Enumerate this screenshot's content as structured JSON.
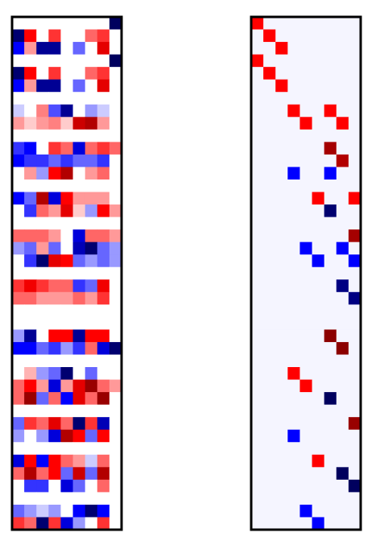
{
  "chart_data": [
    {
      "type": "heatmap",
      "colormap": "seismic",
      "vmin": -1,
      "vmax": 1,
      "colors": {
        "negative_end": "#00004c",
        "zero": "#ffffff",
        "positive_end": "#7f0000"
      },
      "n_rows": 41,
      "n_cols": 9,
      "values": [
        [
          0,
          0,
          0,
          0,
          0,
          0,
          0,
          0,
          -0.95
        ],
        [
          -0.9,
          0.5,
          0,
          0.4,
          0,
          0,
          0.3,
          0.4,
          0
        ],
        [
          -0.5,
          0.2,
          -0.8,
          -0.8,
          0,
          -0.3,
          0,
          0.6,
          0
        ],
        [
          0,
          0,
          0,
          0,
          0,
          0,
          0,
          0,
          -0.95
        ],
        [
          -0.9,
          0.5,
          0,
          0.4,
          0,
          0,
          0.3,
          0.4,
          0
        ],
        [
          -0.5,
          0.2,
          -0.8,
          -0.8,
          0,
          -0.3,
          0,
          0.6,
          0
        ],
        [
          0,
          0,
          0,
          0,
          0,
          0,
          0,
          0,
          0
        ],
        [
          -0.1,
          0,
          0.25,
          -0.35,
          -0.8,
          0,
          -0.2,
          -0.1,
          0
        ],
        [
          0.2,
          0.1,
          0.2,
          0.25,
          0.1,
          0.7,
          0.8,
          0.2,
          0
        ],
        [
          0,
          0,
          0,
          0,
          0,
          0,
          0,
          0,
          0
        ],
        [
          -0.4,
          -0.5,
          0,
          0.4,
          0.3,
          -0.6,
          0.3,
          0.4,
          0.3
        ],
        [
          -0.5,
          -0.4,
          -0.4,
          -0.3,
          -0.4,
          -0.3,
          -0.3,
          -0.4,
          0
        ],
        [
          0,
          0.2,
          -0.2,
          0.5,
          0.8,
          0,
          0.2,
          0.3,
          0
        ],
        [
          0,
          0,
          0,
          0,
          0,
          0,
          0,
          0,
          0
        ],
        [
          -0.5,
          -0.3,
          0.8,
          -0.6,
          0.5,
          0.2,
          0.2,
          0.2,
          0
        ],
        [
          0,
          -0.4,
          0.3,
          0.2,
          0.6,
          0.1,
          -0.2,
          0.5,
          0.2
        ],
        [
          0,
          0,
          0,
          0,
          0,
          0,
          0,
          0,
          0
        ],
        [
          0.3,
          0.3,
          0.3,
          0.2,
          0,
          -0.6,
          0.3,
          0.3,
          0.2
        ],
        [
          -0.2,
          -0.3,
          0.2,
          -0.3,
          0,
          -0.7,
          -0.9,
          -0.3,
          -0.2
        ],
        [
          0,
          -0.4,
          -0.9,
          0.6,
          0.5,
          -0.3,
          -0.2,
          -0.3,
          -0.2
        ],
        [
          0,
          0,
          0,
          0,
          0,
          0,
          0,
          0,
          0
        ],
        [
          0.4,
          0.55,
          0.4,
          0.3,
          0.3,
          -0.4,
          -0.3,
          0.55,
          0
        ],
        [
          0.3,
          0.3,
          0.2,
          0.2,
          0.2,
          0.3,
          0.2,
          0.4,
          0
        ],
        [
          0,
          0,
          0,
          0,
          0,
          0,
          0,
          0,
          0
        ],
        [
          0,
          0,
          0,
          0,
          0,
          0,
          0,
          0,
          0
        ],
        [
          -0.2,
          -0.8,
          0,
          0.5,
          0.5,
          -0.8,
          0.5,
          0.5,
          0
        ],
        [
          -0.5,
          -0.5,
          -0.3,
          -0.4,
          -0.2,
          -0.4,
          0.3,
          -0.6,
          -0.9
        ],
        [
          0,
          0,
          0,
          0,
          0,
          0,
          0,
          0,
          0
        ],
        [
          0,
          0.15,
          -0.2,
          -0.3,
          -0.9,
          0,
          -0.3,
          0,
          0
        ],
        [
          0.3,
          0.5,
          0.2,
          -0.6,
          0.2,
          0.6,
          0.9,
          0.3,
          0.2
        ],
        [
          0.3,
          0.9,
          -0.3,
          0.3,
          -0.5,
          0.6,
          0.3,
          0.9,
          0
        ],
        [
          0,
          0,
          0,
          0,
          0,
          0,
          0,
          0,
          0
        ],
        [
          -0.3,
          0.4,
          0.3,
          0.6,
          0.3,
          -0.9,
          0.4,
          -0.7,
          0
        ],
        [
          -0.2,
          0,
          -0.2,
          -0.6,
          0.8,
          0.5,
          -0.3,
          0.5,
          0
        ],
        [
          0,
          0,
          0,
          0,
          0,
          0,
          0,
          0,
          0
        ],
        [
          -0.6,
          0.5,
          -0.5,
          0.5,
          0.3,
          0.2,
          -0.1,
          0.3,
          0
        ],
        [
          0.3,
          0.8,
          0.3,
          0.5,
          -0.3,
          0.7,
          -0.3,
          0.8,
          0
        ],
        [
          0,
          -0.4,
          -0.4,
          0,
          -0.6,
          -0.3,
          0,
          0.3,
          0
        ],
        [
          0,
          0,
          0,
          0,
          0,
          0,
          0,
          0,
          0
        ],
        [
          -0.3,
          -0.2,
          -0.1,
          -0.2,
          0,
          -0.5,
          -0.9,
          -0.5,
          0
        ],
        [
          0.4,
          0.3,
          -0.9,
          0.4,
          -0.6,
          -0.2,
          0,
          0.4,
          0
        ]
      ]
    },
    {
      "type": "heatmap",
      "colormap": "seismic",
      "vmin": -1,
      "vmax": 1,
      "background_value": -0.02,
      "n_rows": 41,
      "n_cols": 9,
      "cells": [
        [
          0,
          0,
          0.5
        ],
        [
          1,
          1,
          0.5
        ],
        [
          2,
          2,
          0.5
        ],
        [
          3,
          0,
          0.5
        ],
        [
          4,
          1,
          0.5
        ],
        [
          5,
          2,
          0.5
        ],
        [
          7,
          3,
          0.5
        ],
        [
          7,
          6,
          0.5
        ],
        [
          8,
          4,
          0.5
        ],
        [
          8,
          7,
          0.5
        ],
        [
          10,
          6,
          0.85
        ],
        [
          11,
          7,
          0.8
        ],
        [
          12,
          3,
          -0.5
        ],
        [
          12,
          6,
          -0.5
        ],
        [
          14,
          5,
          0.5
        ],
        [
          14,
          8,
          0.5
        ],
        [
          15,
          6,
          -0.9
        ],
        [
          17,
          8,
          0.85
        ],
        [
          18,
          4,
          -0.5
        ],
        [
          18,
          7,
          -0.5
        ],
        [
          19,
          5,
          -0.5
        ],
        [
          19,
          8,
          -0.5
        ],
        [
          21,
          7,
          -0.85
        ],
        [
          22,
          8,
          -0.85
        ],
        [
          25,
          6,
          0.95
        ],
        [
          26,
          7,
          0.95
        ],
        [
          28,
          3,
          0.5
        ],
        [
          29,
          4,
          0.5
        ],
        [
          30,
          6,
          -0.95
        ],
        [
          32,
          8,
          0.9
        ],
        [
          33,
          3,
          -0.5
        ],
        [
          35,
          5,
          0.5
        ],
        [
          36,
          7,
          -0.95
        ],
        [
          37,
          8,
          -0.95
        ],
        [
          39,
          4,
          -0.5
        ],
        [
          40,
          5,
          -0.5
        ]
      ]
    }
  ]
}
